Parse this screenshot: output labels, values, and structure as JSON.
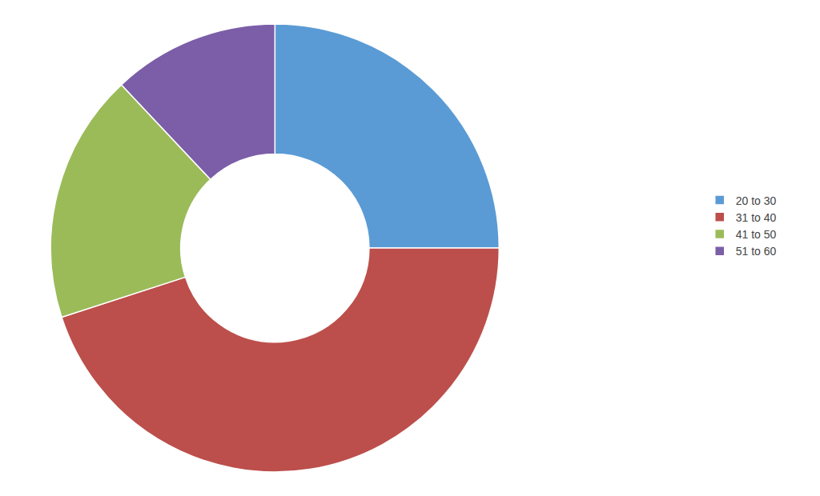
{
  "chart_data": {
    "type": "donut",
    "categories": [
      "20 to 30",
      "31 to 40",
      "41 to 50",
      "51 to 60"
    ],
    "values": [
      25,
      45,
      18,
      12
    ],
    "colors": [
      "#5b9bd5",
      "#bc4f4b",
      "#9bbb59",
      "#7b5ea7"
    ],
    "legend": "right"
  }
}
